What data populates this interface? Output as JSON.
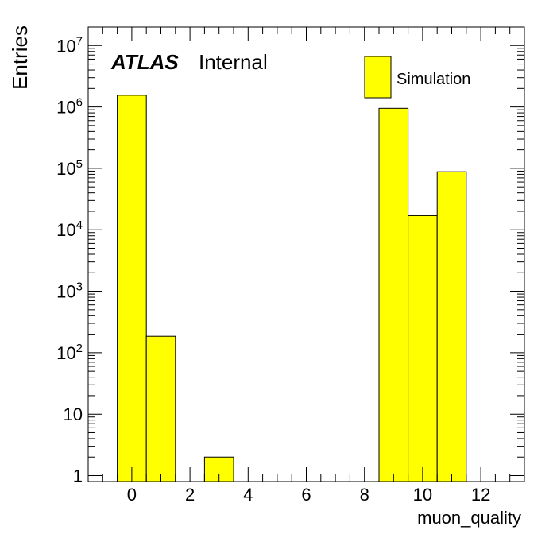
{
  "chart_data": {
    "type": "bar",
    "style": "histogram",
    "xlabel": "muon_quality",
    "ylabel": "Entries",
    "xlim": [
      -1.5,
      13.5
    ],
    "ylim": [
      0.8,
      20000000
    ],
    "yscale": "log",
    "bin_width": 1,
    "fill_color": "#ffff00",
    "edge_color": "#000000",
    "x_ticks": [
      0,
      2,
      4,
      6,
      8,
      10,
      12
    ],
    "x_tick_labels": [
      "0",
      "2",
      "4",
      "6",
      "8",
      "10",
      "12"
    ],
    "y_tick_labels": [
      {
        "value": 1,
        "text": "1"
      },
      {
        "value": 10,
        "text": "10"
      },
      {
        "value": 100,
        "base": "10",
        "exp": "2"
      },
      {
        "value": 1000,
        "base": "10",
        "exp": "3"
      },
      {
        "value": 10000,
        "base": "10",
        "exp": "4"
      },
      {
        "value": 100000,
        "base": "10",
        "exp": "5"
      },
      {
        "value": 1000000,
        "base": "10",
        "exp": "6"
      },
      {
        "value": 10000000,
        "base": "10",
        "exp": "7"
      }
    ],
    "bins": [
      {
        "center": 0,
        "value": 1550000
      },
      {
        "center": 1,
        "value": 185
      },
      {
        "center": 3,
        "value": 2
      },
      {
        "center": 9,
        "value": 950000
      },
      {
        "center": 10,
        "value": 17000
      },
      {
        "center": 11,
        "value": 88000
      }
    ],
    "legend": {
      "label": "Simulation",
      "position": "top-right"
    },
    "annotation": {
      "bold": "ATLAS",
      "normal": "Internal"
    }
  }
}
